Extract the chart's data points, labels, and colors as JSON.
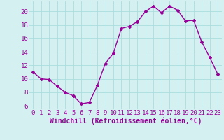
{
  "x": [
    0,
    1,
    2,
    3,
    4,
    5,
    6,
    7,
    8,
    9,
    10,
    11,
    12,
    13,
    14,
    15,
    16,
    17,
    18,
    19,
    20,
    21,
    22,
    23
  ],
  "y": [
    11.0,
    10.0,
    9.9,
    8.9,
    8.0,
    7.5,
    6.3,
    6.5,
    9.0,
    12.3,
    13.8,
    17.5,
    17.8,
    18.5,
    20.0,
    20.8,
    19.8,
    20.8,
    20.2,
    18.6,
    18.7,
    15.5,
    13.2,
    10.7
  ],
  "line_color": "#990099",
  "marker": "D",
  "marker_size": 2.0,
  "bg_color": "#d4f0f0",
  "grid_color": "#aadddd",
  "xlabel": "Windchill (Refroidissement éolien,°C)",
  "xlabel_color": "#990099",
  "tick_color": "#990099",
  "ylim": [
    5.5,
    21.5
  ],
  "yticks": [
    6,
    8,
    10,
    12,
    14,
    16,
    18,
    20
  ],
  "xticks": [
    0,
    1,
    2,
    3,
    4,
    5,
    6,
    7,
    8,
    9,
    10,
    11,
    12,
    13,
    14,
    15,
    16,
    17,
    18,
    19,
    20,
    21,
    22,
    23
  ],
  "line_width": 1.0,
  "font_size": 6.5,
  "xlabel_fontsize": 7.0
}
